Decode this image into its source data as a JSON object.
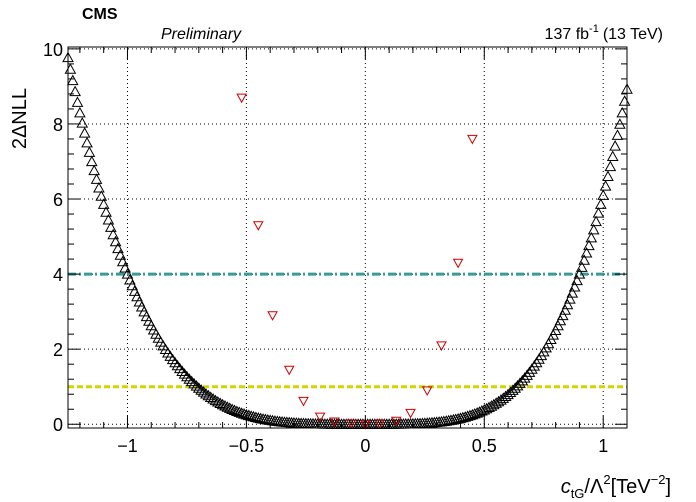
{
  "header": {
    "experiment": "CMS",
    "status": "Preliminary",
    "lumi": "137 fb",
    "lumi_exponent": "-1",
    "energy": "(13 TeV)"
  },
  "chart_data": {
    "type": "scatter",
    "xlabel": {
      "italic": "c",
      "sub": "tG",
      "rest": "/Λ",
      "sup": "2",
      "unit": "[TeV",
      "unit_sup": "−2",
      "close": "]"
    },
    "ylabel": "2ΔNLL",
    "xlim": [
      -1.25,
      1.1
    ],
    "ylim": [
      -0.1,
      10.05
    ],
    "x_ticks": [
      -1,
      -0.5,
      0,
      0.5,
      1
    ],
    "x_tick_labels": [
      "−1",
      "−0.5",
      "0",
      "0.5",
      "1"
    ],
    "y_ticks": [
      0,
      2,
      4,
      6,
      8,
      10
    ],
    "y_tick_labels": [
      "0",
      "2",
      "4",
      "6",
      "8",
      "10"
    ],
    "grid": true,
    "reference_lines": [
      {
        "y": 4,
        "color": "#3a9a9a",
        "style": "dash-dot"
      },
      {
        "y": 1,
        "color": "#d4d400",
        "style": "dashed"
      }
    ],
    "series": [
      {
        "marker": "open-triangle-up",
        "color": "#000000",
        "curve": {
          "x_min": -1.25,
          "x_max": 1.1,
          "x_step": 0.01,
          "y_max": 10.0,
          "left_anchor": {
            "x": -1.0,
            "y": 4.0
          },
          "right_anchor": {
            "x": 0.9,
            "y": 4.0
          },
          "power": 4
        }
      },
      {
        "marker": "open-triangle-down",
        "color": "#cc0000",
        "points": [
          {
            "x": -0.52,
            "y": 8.7
          },
          {
            "x": -0.45,
            "y": 5.3
          },
          {
            "x": -0.39,
            "y": 2.9
          },
          {
            "x": -0.32,
            "y": 1.45
          },
          {
            "x": -0.26,
            "y": 0.62
          },
          {
            "x": -0.19,
            "y": 0.2
          },
          {
            "x": -0.13,
            "y": 0.07
          },
          {
            "x": -0.06,
            "y": 0.02
          },
          {
            "x": 0.0,
            "y": 0.0
          },
          {
            "x": 0.06,
            "y": 0.02
          },
          {
            "x": 0.13,
            "y": 0.09
          },
          {
            "x": 0.19,
            "y": 0.3
          },
          {
            "x": 0.26,
            "y": 0.9
          },
          {
            "x": 0.32,
            "y": 2.1
          },
          {
            "x": 0.39,
            "y": 4.3
          },
          {
            "x": 0.45,
            "y": 7.6
          }
        ]
      }
    ]
  }
}
